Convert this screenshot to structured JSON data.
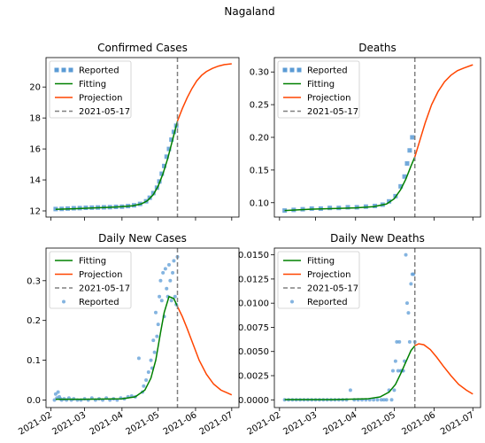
{
  "suptitle": "Nagaland",
  "colors": {
    "reported": "#5b9bd5",
    "fitting": "#008000",
    "projection": "#ff4500",
    "vline": "#808080"
  },
  "chart_data": [
    {
      "type": "line",
      "title": "Confirmed Cases",
      "xlabel": "",
      "ylabel": "",
      "xlim": [
        "2021-01-28",
        "2021-07-07"
      ],
      "ylim": [
        11.6,
        21.9
      ],
      "yticks": [
        12,
        14,
        16,
        18,
        20
      ],
      "ytick_labels": [
        "12",
        "14",
        "16",
        "18",
        "20"
      ],
      "show_xtick_labels": false,
      "vline": "2021-05-17",
      "legend": [
        "Reported",
        "Fitting",
        "Projection",
        "2021-05-17"
      ],
      "legend_position": "upper-left",
      "reported_style": "square",
      "reported": {
        "x": [
          "2021-02-05",
          "2021-02-10",
          "2021-02-15",
          "2021-02-20",
          "2021-02-25",
          "2021-03-02",
          "2021-03-07",
          "2021-03-12",
          "2021-03-17",
          "2021-03-22",
          "2021-03-27",
          "2021-04-01",
          "2021-04-06",
          "2021-04-11",
          "2021-04-16",
          "2021-04-21",
          "2021-04-24",
          "2021-04-27",
          "2021-04-30",
          "2021-05-02",
          "2021-05-04",
          "2021-05-06",
          "2021-05-08",
          "2021-05-10",
          "2021-05-12",
          "2021-05-14",
          "2021-05-16"
        ],
        "y": [
          12.12,
          12.13,
          12.15,
          12.17,
          12.18,
          12.2,
          12.21,
          12.22,
          12.23,
          12.24,
          12.26,
          12.27,
          12.31,
          12.36,
          12.45,
          12.62,
          12.85,
          13.15,
          13.5,
          13.9,
          14.4,
          14.9,
          15.5,
          16.0,
          16.6,
          17.1,
          17.5
        ]
      },
      "fitting": {
        "x": [
          "2021-02-05",
          "2021-02-20",
          "2021-03-07",
          "2021-03-22",
          "2021-04-01",
          "2021-04-10",
          "2021-04-17",
          "2021-04-22",
          "2021-04-27",
          "2021-05-01",
          "2021-05-05",
          "2021-05-09",
          "2021-05-13",
          "2021-05-17"
        ],
        "y": [
          12.1,
          12.14,
          12.19,
          12.23,
          12.27,
          12.33,
          12.45,
          12.65,
          13.05,
          13.6,
          14.4,
          15.4,
          16.6,
          17.8
        ]
      },
      "projection": {
        "x": [
          "2021-05-17",
          "2021-05-21",
          "2021-05-25",
          "2021-05-29",
          "2021-06-02",
          "2021-06-06",
          "2021-06-10",
          "2021-06-15",
          "2021-06-20",
          "2021-06-25",
          "2021-07-01"
        ],
        "y": [
          17.8,
          18.6,
          19.3,
          19.9,
          20.4,
          20.75,
          21.0,
          21.2,
          21.35,
          21.45,
          21.5
        ]
      }
    },
    {
      "type": "line",
      "title": "Deaths",
      "xlabel": "",
      "ylabel": "",
      "xlim": [
        "2021-01-28",
        "2021-07-07"
      ],
      "ylim": [
        0.078,
        0.322
      ],
      "yticks": [
        0.1,
        0.15,
        0.2,
        0.25,
        0.3
      ],
      "ytick_labels": [
        "0.10",
        "0.15",
        "0.20",
        "0.25",
        "0.30"
      ],
      "show_xtick_labels": false,
      "vline": "2021-05-17",
      "legend": [
        "Reported",
        "Fitting",
        "Projection",
        "2021-05-17"
      ],
      "legend_position": "upper-left",
      "reported_style": "square",
      "reported": {
        "x": [
          "2021-02-05",
          "2021-02-12",
          "2021-02-19",
          "2021-02-26",
          "2021-03-05",
          "2021-03-12",
          "2021-03-19",
          "2021-03-26",
          "2021-04-02",
          "2021-04-09",
          "2021-04-16",
          "2021-04-22",
          "2021-04-27",
          "2021-05-02",
          "2021-05-06",
          "2021-05-09",
          "2021-05-11",
          "2021-05-13",
          "2021-05-15"
        ],
        "y": [
          0.088,
          0.089,
          0.09,
          0.091,
          0.091,
          0.092,
          0.092,
          0.093,
          0.093,
          0.094,
          0.095,
          0.097,
          0.102,
          0.11,
          0.125,
          0.14,
          0.16,
          0.18,
          0.2
        ]
      },
      "fitting": {
        "x": [
          "2021-02-05",
          "2021-02-25",
          "2021-03-15",
          "2021-04-01",
          "2021-04-15",
          "2021-04-25",
          "2021-05-01",
          "2021-05-06",
          "2021-05-10",
          "2021-05-14",
          "2021-05-17"
        ],
        "y": [
          0.088,
          0.09,
          0.091,
          0.092,
          0.094,
          0.098,
          0.106,
          0.12,
          0.136,
          0.156,
          0.17
        ]
      },
      "projection": {
        "x": [
          "2021-05-17",
          "2021-05-21",
          "2021-05-25",
          "2021-05-30",
          "2021-06-04",
          "2021-06-09",
          "2021-06-14",
          "2021-06-19",
          "2021-06-24",
          "2021-07-01"
        ],
        "y": [
          0.17,
          0.196,
          0.222,
          0.25,
          0.27,
          0.285,
          0.295,
          0.302,
          0.306,
          0.311
        ]
      }
    },
    {
      "type": "scatter",
      "title": "Daily New Cases",
      "xlabel": "",
      "ylabel": "",
      "xlim": [
        "2021-01-28",
        "2021-07-07"
      ],
      "ylim": [
        -0.019,
        0.382
      ],
      "yticks": [
        0,
        0.1,
        0.2,
        0.3
      ],
      "ytick_labels": [
        "0.0",
        "0.1",
        "0.2",
        "0.3"
      ],
      "xticks": [
        "2021-02-01",
        "2021-03-01",
        "2021-04-01",
        "2021-05-01",
        "2021-06-01",
        "2021-07-01"
      ],
      "xtick_labels": [
        "2021-02",
        "2021-03",
        "2021-04",
        "2021-05",
        "2021-06",
        "2021-07"
      ],
      "show_xtick_labels": true,
      "vline": "2021-05-17",
      "legend": [
        "Fitting",
        "Projection",
        "2021-05-17",
        "Reported"
      ],
      "legend_position": "upper-left",
      "reported_style": "dot",
      "reported": {
        "x": [
          "2021-02-04",
          "2021-02-05",
          "2021-02-06",
          "2021-02-07",
          "2021-02-08",
          "2021-02-09",
          "2021-02-10",
          "2021-02-12",
          "2021-02-14",
          "2021-02-16",
          "2021-02-18",
          "2021-02-20",
          "2021-02-23",
          "2021-02-26",
          "2021-03-01",
          "2021-03-04",
          "2021-03-07",
          "2021-03-10",
          "2021-03-13",
          "2021-03-16",
          "2021-03-19",
          "2021-03-22",
          "2021-03-25",
          "2021-03-28",
          "2021-03-31",
          "2021-04-03",
          "2021-04-06",
          "2021-04-09",
          "2021-04-12",
          "2021-04-15",
          "2021-04-18",
          "2021-04-19",
          "2021-04-21",
          "2021-04-23",
          "2021-04-25",
          "2021-04-26",
          "2021-04-27",
          "2021-04-28",
          "2021-04-29",
          "2021-04-30",
          "2021-05-01",
          "2021-05-02",
          "2021-05-03",
          "2021-05-04",
          "2021-05-05",
          "2021-05-06",
          "2021-05-07",
          "2021-05-08",
          "2021-05-09",
          "2021-05-10",
          "2021-05-11",
          "2021-05-12",
          "2021-05-13",
          "2021-05-14",
          "2021-05-15",
          "2021-05-16",
          "2021-05-17"
        ],
        "y": [
          0.0,
          0.015,
          0.005,
          0.02,
          0.008,
          0.003,
          0.0,
          0.003,
          0.0,
          0.005,
          0.0,
          0.003,
          0.0,
          0.0,
          0.003,
          0.0,
          0.005,
          0.0,
          0.003,
          0.0,
          0.005,
          0.0,
          0.003,
          0.0,
          0.005,
          0.003,
          0.008,
          0.01,
          0.008,
          0.105,
          0.02,
          0.035,
          0.05,
          0.07,
          0.1,
          0.08,
          0.15,
          0.12,
          0.22,
          0.16,
          0.19,
          0.26,
          0.3,
          0.25,
          0.32,
          0.21,
          0.33,
          0.28,
          0.26,
          0.34,
          0.3,
          0.25,
          0.32,
          0.35,
          0.26,
          0.24,
          0.36
        ]
      },
      "fitting": {
        "x": [
          "2021-02-05",
          "2021-03-01",
          "2021-04-01",
          "2021-04-12",
          "2021-04-20",
          "2021-04-25",
          "2021-04-29",
          "2021-05-03",
          "2021-05-06",
          "2021-05-10",
          "2021-05-14",
          "2021-05-17"
        ],
        "y": [
          0.002,
          0.002,
          0.003,
          0.008,
          0.025,
          0.055,
          0.1,
          0.17,
          0.22,
          0.26,
          0.255,
          0.235
        ]
      },
      "projection": {
        "x": [
          "2021-05-17",
          "2021-05-21",
          "2021-05-25",
          "2021-05-30",
          "2021-06-04",
          "2021-06-10",
          "2021-06-16",
          "2021-06-22",
          "2021-07-01"
        ],
        "y": [
          0.235,
          0.21,
          0.18,
          0.14,
          0.1,
          0.065,
          0.04,
          0.025,
          0.013
        ]
      }
    },
    {
      "type": "scatter",
      "title": "Daily New Deaths",
      "xlabel": "",
      "ylabel": "",
      "xlim": [
        "2021-01-28",
        "2021-07-07"
      ],
      "ylim": [
        -0.0008,
        0.0157
      ],
      "yticks": [
        0,
        0.0025,
        0.005,
        0.0075,
        0.01,
        0.0125,
        0.015
      ],
      "ytick_labels": [
        "0.0000",
        "0.0025",
        "0.0050",
        "0.0075",
        "0.0100",
        "0.0125",
        "0.0150"
      ],
      "xticks": [
        "2021-02-01",
        "2021-03-01",
        "2021-04-01",
        "2021-05-01",
        "2021-06-01",
        "2021-07-01"
      ],
      "xtick_labels": [
        "2021-02",
        "2021-03",
        "2021-04",
        "2021-05",
        "2021-06",
        "2021-07"
      ],
      "show_xtick_labels": true,
      "vline": "2021-05-17",
      "legend": [
        "Fitting",
        "Projection",
        "2021-05-17",
        "Reported"
      ],
      "legend_position": "upper-left",
      "reported_style": "dot",
      "reported": {
        "x": [
          "2021-02-05",
          "2021-02-08",
          "2021-02-11",
          "2021-02-14",
          "2021-02-17",
          "2021-02-20",
          "2021-02-23",
          "2021-02-26",
          "2021-03-01",
          "2021-03-04",
          "2021-03-07",
          "2021-03-10",
          "2021-03-13",
          "2021-03-16",
          "2021-03-19",
          "2021-03-22",
          "2021-03-25",
          "2021-03-28",
          "2021-03-31",
          "2021-04-03",
          "2021-04-06",
          "2021-04-09",
          "2021-04-12",
          "2021-04-15",
          "2021-04-18",
          "2021-04-21",
          "2021-04-23",
          "2021-04-25",
          "2021-04-27",
          "2021-04-29",
          "2021-04-30",
          "2021-05-01",
          "2021-05-02",
          "2021-05-03",
          "2021-05-04",
          "2021-05-05",
          "2021-05-06",
          "2021-05-07",
          "2021-05-08",
          "2021-05-09",
          "2021-05-10",
          "2021-05-11",
          "2021-05-12",
          "2021-05-13",
          "2021-05-14",
          "2021-05-15",
          "2021-05-16",
          "2021-05-17"
        ],
        "y": [
          0.0,
          0.0,
          0.0,
          0.0,
          0.0,
          0.0,
          0.0,
          0.0,
          0.0,
          0.0,
          0.0,
          0.0,
          0.0,
          0.0,
          0.0,
          0.0,
          0.0,
          0.001,
          0.0,
          0.0,
          0.0,
          0.0,
          0.0,
          0.0,
          0.0,
          0.0,
          0.0,
          0.0,
          0.001,
          0.0,
          0.003,
          0.001,
          0.004,
          0.006,
          0.003,
          0.006,
          0.003,
          0.003,
          0.003,
          0.004,
          0.015,
          0.01,
          0.009,
          0.006,
          0.012,
          0.013,
          0.013,
          0.006
        ]
      },
      "fitting": {
        "x": [
          "2021-02-05",
          "2021-03-15",
          "2021-04-10",
          "2021-04-20",
          "2021-04-27",
          "2021-05-02",
          "2021-05-06",
          "2021-05-10",
          "2021-05-14",
          "2021-05-17"
        ],
        "y": [
          2e-05,
          3e-05,
          0.0001,
          0.0003,
          0.0008,
          0.0016,
          0.0027,
          0.0039,
          0.0051,
          0.0056
        ]
      },
      "projection": {
        "x": [
          "2021-05-17",
          "2021-05-20",
          "2021-05-24",
          "2021-05-29",
          "2021-06-03",
          "2021-06-08",
          "2021-06-14",
          "2021-06-20",
          "2021-06-26",
          "2021-07-01"
        ],
        "y": [
          0.0056,
          0.0058,
          0.0057,
          0.0052,
          0.0044,
          0.0035,
          0.0025,
          0.0016,
          0.001,
          0.0006
        ]
      }
    }
  ]
}
